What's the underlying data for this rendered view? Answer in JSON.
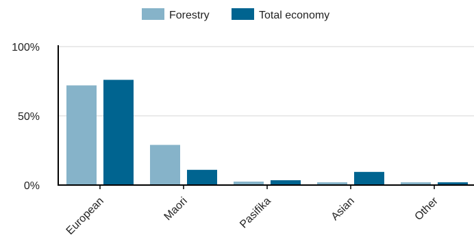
{
  "chart_data": {
    "type": "bar",
    "categories": [
      "European",
      "Maori",
      "Pasifika",
      "Asian",
      "Other"
    ],
    "series": [
      {
        "name": "Forestry",
        "color": "#86b3c9",
        "values": [
          72,
          29,
          2.5,
          2,
          2
        ]
      },
      {
        "name": "Total economy",
        "color": "#006490",
        "values": [
          76,
          11,
          3.5,
          9.5,
          2
        ]
      }
    ],
    "y_ticks": [
      {
        "value": 0,
        "label": "0%"
      },
      {
        "value": 50,
        "label": "50%"
      },
      {
        "value": 100,
        "label": "100%"
      }
    ],
    "ylim": [
      0,
      100
    ],
    "grid": true,
    "legend_position": "top-center",
    "title": "",
    "xlabel": "",
    "ylabel": ""
  }
}
